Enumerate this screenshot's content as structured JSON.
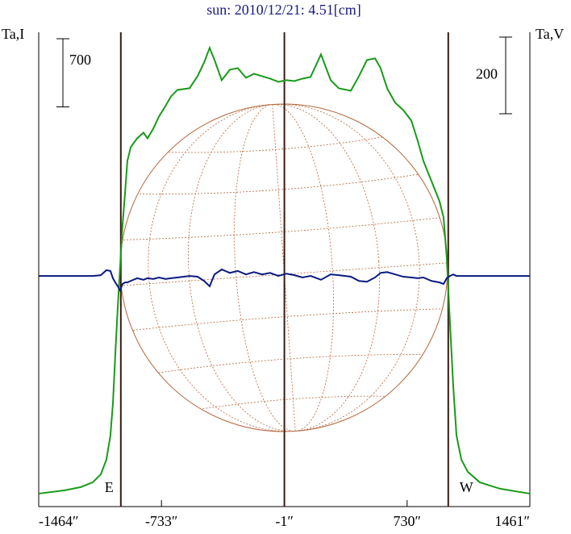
{
  "chart_data": {
    "type": "line",
    "title": "sun: 2010/12/21: 4.51[cm]",
    "y_label": "Ta,I",
    "y2_label": "Ta,V",
    "x": [
      -1464,
      -1310,
      -1214,
      -1142,
      -1094,
      -1061,
      -1037,
      -1022,
      -1008,
      -993,
      -979,
      -965,
      -950,
      -936,
      -916,
      -878,
      -840,
      -816,
      -782,
      -748,
      -709,
      -676,
      -638,
      -566,
      -518,
      -479,
      -446,
      -417,
      -374,
      -326,
      -278,
      -230,
      -182,
      -134,
      -86,
      -37,
      11,
      59,
      107,
      155,
      217,
      275,
      323,
      395,
      443,
      491,
      539,
      572,
      611,
      659,
      707,
      755,
      793,
      827,
      875,
      923,
      947,
      966,
      985,
      1005,
      1024,
      1053,
      1091,
      1163,
      1284,
      1461
    ],
    "series": [
      {
        "name": "I",
        "color": "#1a9a1a",
        "values": [
          -17,
          17,
          50,
          99,
          182,
          332,
          580,
          912,
          1409,
          1907,
          2321,
          2736,
          3067,
          3399,
          3540,
          3631,
          3689,
          3631,
          3730,
          3855,
          3963,
          4062,
          4128,
          4145,
          4269,
          4410,
          4560,
          4435,
          4228,
          4336,
          4352,
          4253,
          4294,
          4269,
          4244,
          4211,
          4228,
          4219,
          4244,
          4261,
          4493,
          4228,
          4145,
          4120,
          4269,
          4435,
          4452,
          4352,
          4145,
          3996,
          3921,
          3813,
          3606,
          3399,
          3192,
          2984,
          2819,
          2404,
          1741,
          1078,
          580,
          332,
          207,
          99,
          33,
          -17
        ]
      },
      {
        "name": "V",
        "color": "#0a1a80",
        "axis": "y2",
        "values": [
          0,
          0,
          0,
          0,
          2,
          15,
          13,
          -6,
          -17,
          -27,
          -38,
          -21,
          -17,
          -17,
          -13,
          -6,
          -10,
          -6,
          -8,
          -4,
          -8,
          -6,
          -4,
          0,
          -2,
          -13,
          -27,
          4,
          17,
          8,
          13,
          4,
          10,
          4,
          8,
          0,
          6,
          2,
          -4,
          0,
          -10,
          4,
          2,
          -2,
          -13,
          -15,
          -4,
          8,
          10,
          4,
          -2,
          -4,
          -6,
          -4,
          -13,
          -17,
          -21,
          -6,
          0,
          4,
          0,
          0,
          0,
          0,
          0,
          0
        ]
      }
    ],
    "xlim": [
      -1464,
      1461
    ],
    "xticks": [
      {
        "value": -1464,
        "label": "-1464″"
      },
      {
        "value": -733,
        "label": "-733″"
      },
      {
        "value": -1,
        "label": "-1″"
      },
      {
        "value": 730,
        "label": "730″"
      },
      {
        "value": 1461,
        "label": "1461″"
      }
    ],
    "ylim": [
      -150,
      4720
    ],
    "y2lim": [
      -602,
      636
    ],
    "vlines": [
      -975,
      -1,
      975
    ],
    "limb_labels": [
      "E",
      "W"
    ],
    "scale_bars": [
      {
        "value": 700,
        "label": "700"
      },
      {
        "value": 200,
        "label": "200",
        "axis": "y2"
      }
    ]
  }
}
